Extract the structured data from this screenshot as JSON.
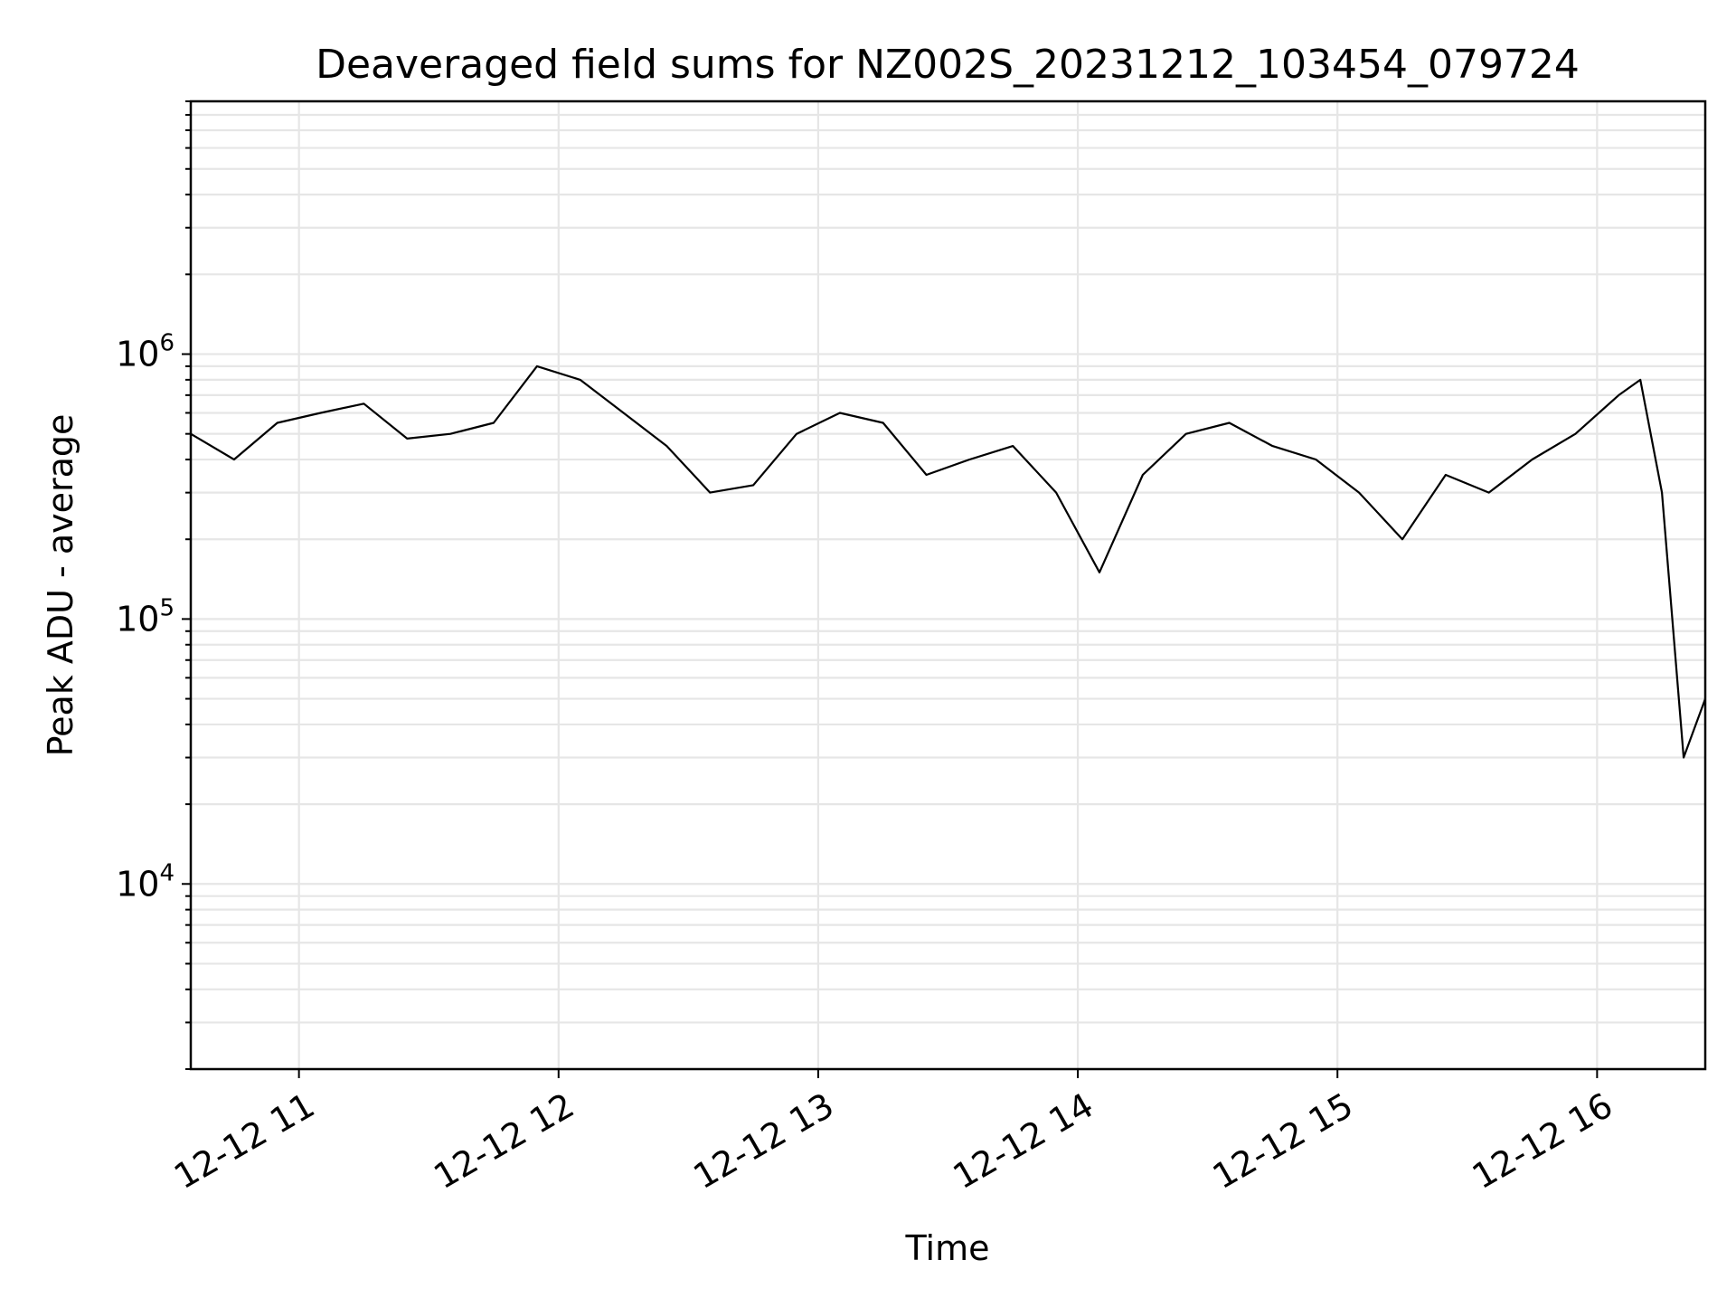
{
  "chart_data": {
    "type": "line",
    "title": "Deaveraged field sums for NZ002S_20231212_103454_079724",
    "xlabel": "Time",
    "ylabel": "Peak ADU - average",
    "yscale": "log",
    "grid": true,
    "xlim": [
      "2023-12-12 10:35",
      "2023-12-12 16:25"
    ],
    "ylim": [
      2000,
      9000000
    ],
    "x_ticks": [
      "12-12 11",
      "12-12 12",
      "12-12 13",
      "12-12 14",
      "12-12 15",
      "12-12 16"
    ],
    "y_ticks": [
      {
        "base": "10",
        "exp": "4"
      },
      {
        "base": "10",
        "exp": "5"
      },
      {
        "base": "10",
        "exp": "6"
      }
    ],
    "series": [
      {
        "color": "#000000",
        "x": [
          "2023-12-12 10:35",
          "2023-12-12 10:45",
          "2023-12-12 10:55",
          "2023-12-12 11:05",
          "2023-12-12 11:15",
          "2023-12-12 11:25",
          "2023-12-12 11:35",
          "2023-12-12 11:45",
          "2023-12-12 11:55",
          "2023-12-12 12:05",
          "2023-12-12 12:15",
          "2023-12-12 12:25",
          "2023-12-12 12:35",
          "2023-12-12 12:45",
          "2023-12-12 12:55",
          "2023-12-12 13:05",
          "2023-12-12 13:15",
          "2023-12-12 13:25",
          "2023-12-12 13:35",
          "2023-12-12 13:45",
          "2023-12-12 13:55",
          "2023-12-12 14:05",
          "2023-12-12 14:15",
          "2023-12-12 14:25",
          "2023-12-12 14:35",
          "2023-12-12 14:45",
          "2023-12-12 14:55",
          "2023-12-12 15:05",
          "2023-12-12 15:15",
          "2023-12-12 15:25",
          "2023-12-12 15:35",
          "2023-12-12 15:45",
          "2023-12-12 15:55",
          "2023-12-12 16:05",
          "2023-12-12 16:10",
          "2023-12-12 16:15",
          "2023-12-12 16:20",
          "2023-12-12 16:25"
        ],
        "y": [
          500000,
          400000,
          550000,
          600000,
          650000,
          480000,
          500000,
          550000,
          900000,
          800000,
          600000,
          450000,
          300000,
          320000,
          500000,
          600000,
          550000,
          350000,
          400000,
          450000,
          300000,
          150000,
          350000,
          500000,
          550000,
          450000,
          400000,
          300000,
          200000,
          350000,
          300000,
          400000,
          500000,
          700000,
          800000,
          300000,
          30000,
          50000
        ]
      }
    ]
  }
}
